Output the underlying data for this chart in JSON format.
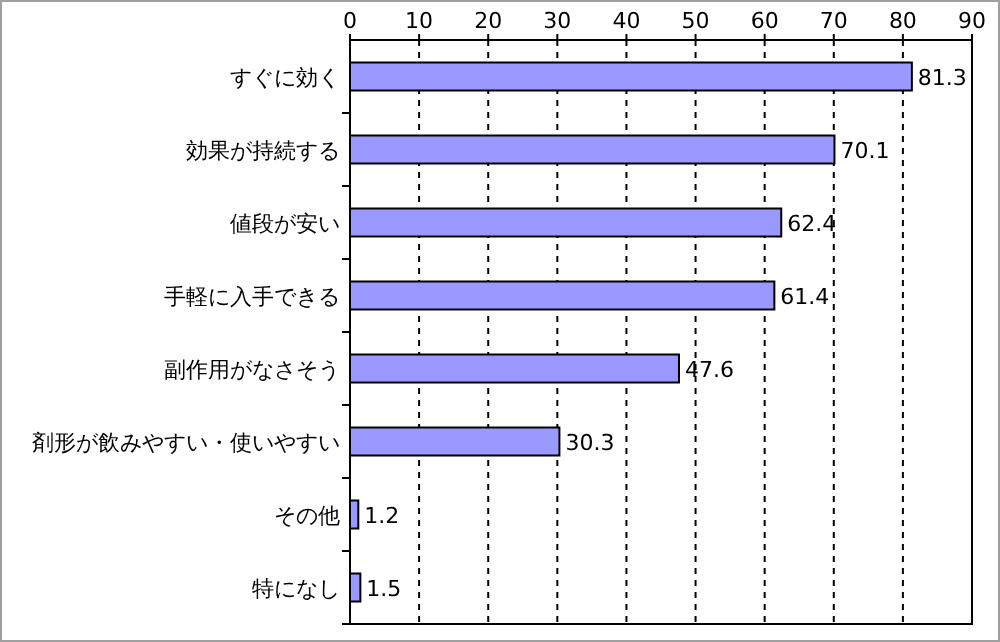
{
  "chart_data": {
    "type": "bar",
    "orientation": "horizontal",
    "categories": [
      "すぐに効く",
      "効果が持続する",
      "値段が安い",
      "手軽に入手できる",
      "副作用がなさそう",
      "剤形が飲みやすい・使いやすい",
      "その他",
      "特になし"
    ],
    "values": [
      81.3,
      70.1,
      62.4,
      61.4,
      47.6,
      30.3,
      1.2,
      1.5
    ],
    "color": "#9999ff",
    "xlim": [
      0,
      90
    ],
    "xticks": [
      0,
      10,
      20,
      30,
      40,
      50,
      60,
      70,
      80,
      90
    ],
    "grid": "x",
    "data_labels": true
  }
}
